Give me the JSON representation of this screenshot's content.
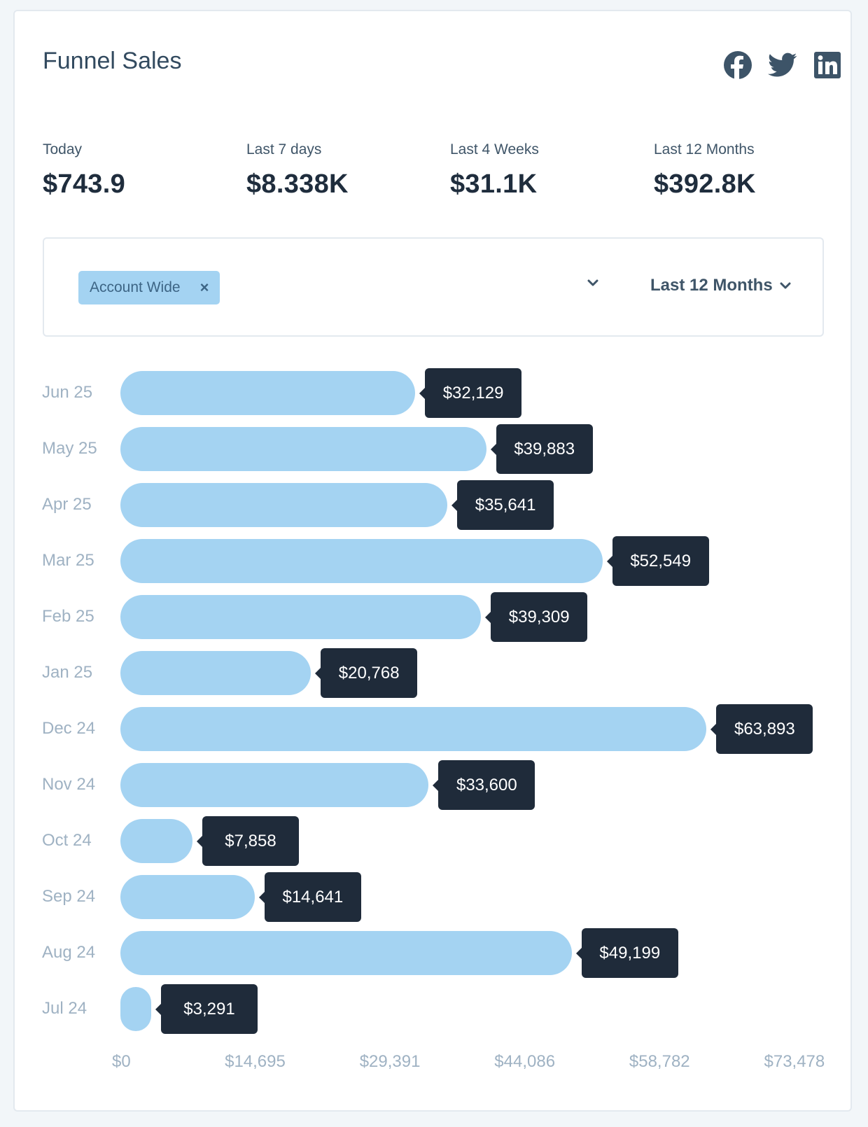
{
  "title": "Funnel Sales",
  "social_icons": [
    "facebook-icon",
    "twitter-icon",
    "linkedin-icon"
  ],
  "stats": [
    {
      "label": "Today",
      "value": "$743.9"
    },
    {
      "label": "Last 7 days",
      "value": "$8.338K"
    },
    {
      "label": "Last 4 Weeks",
      "value": "$31.1K"
    },
    {
      "label": "Last 12 Months",
      "value": "$392.8K"
    }
  ],
  "filter": {
    "chip_label": "Account Wide",
    "chip_remove": "×",
    "period": "Last 12 Months"
  },
  "colors": {
    "bar": "#a4d3f2",
    "tooltip_bg": "#1f2b3a",
    "muted_text": "#9fb2c3",
    "brand_icon": "#3d5468"
  },
  "chart_data": {
    "type": "bar",
    "orientation": "horizontal",
    "categories": [
      "Jun 25",
      "May 25",
      "Apr 25",
      "Mar 25",
      "Feb 25",
      "Jan 25",
      "Dec 24",
      "Nov 24",
      "Oct 24",
      "Sep 24",
      "Aug 24",
      "Jul 24"
    ],
    "values": [
      32129,
      39883,
      35641,
      52549,
      39309,
      20768,
      63893,
      33600,
      7858,
      14641,
      49199,
      3291
    ],
    "value_labels": [
      "$32,129",
      "$39,883",
      "$35,641",
      "$52,549",
      "$39,309",
      "$20,768",
      "$63,893",
      "$33,600",
      "$7,858",
      "$14,641",
      "$49,199",
      "$3,291"
    ],
    "x_ticks": [
      "$0",
      "$14,695",
      "$29,391",
      "$44,086",
      "$58,782",
      "$73,478"
    ],
    "xlim": [
      0,
      73478
    ],
    "grid": false
  }
}
